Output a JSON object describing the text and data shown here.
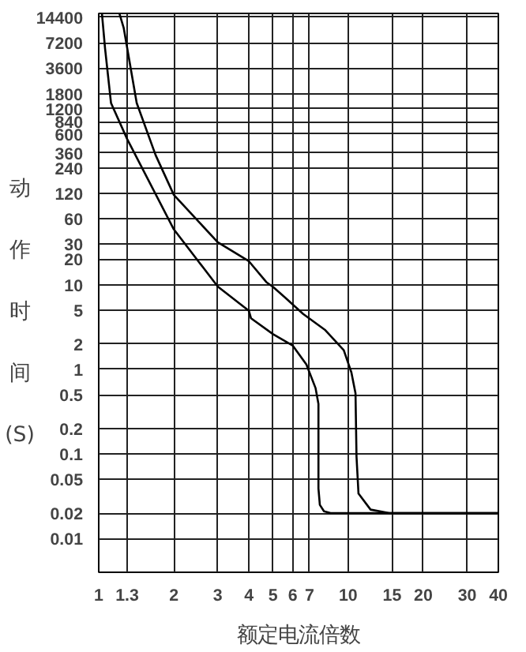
{
  "chart_data": {
    "type": "line",
    "xlabel": "额定电流倍数",
    "ylabel": "动作时间 (S)",
    "log": "xy",
    "grid": true,
    "marker": "none",
    "line_style": "solid",
    "xlim": [
      1,
      40
    ],
    "ylim": [
      0.004,
      16000
    ],
    "xticks": [
      1,
      1.3,
      2,
      3,
      4,
      5,
      6,
      7,
      10,
      15,
      20,
      30,
      40
    ],
    "yticks": [
      14400,
      7200,
      3600,
      1800,
      1200,
      840,
      600,
      360,
      240,
      120,
      60,
      30,
      20,
      10,
      5,
      2,
      1,
      0.5,
      0.2,
      0.1,
      0.05,
      0.02,
      0.01
    ],
    "series": [
      {
        "color": "#000000",
        "x": [
          1.03,
          1.06,
          1.12,
          1.3,
          2,
          3,
          4,
          4.08,
          5,
          6,
          6.8,
          7.4,
          7.6,
          7.6,
          7.7,
          8.0,
          8.5,
          10,
          15,
          20,
          30,
          40
        ],
        "values": [
          16000,
          6200,
          1400,
          525,
          45,
          9.5,
          4.9,
          4,
          2.6,
          1.9,
          1.14,
          0.6,
          0.39,
          0.039,
          0.025,
          0.021,
          0.02,
          0.02,
          0.02,
          0.02,
          0.02,
          0.02
        ]
      },
      {
        "color": "#000000",
        "x": [
          1.21,
          1.26,
          1.42,
          1.69,
          2,
          3,
          4,
          4.7,
          5,
          5.6,
          6.6,
          8.1,
          9.6,
          10.3,
          10.7,
          10.8,
          11.0,
          12.3,
          14.6,
          20,
          30,
          40
        ],
        "values": [
          16000,
          10700,
          1400,
          340,
          115,
          31.7,
          18.9,
          10.7,
          9.4,
          7,
          4.5,
          2.9,
          1.68,
          0.92,
          0.52,
          0.093,
          0.034,
          0.022,
          0.02,
          0.02,
          0.02,
          0.02
        ]
      }
    ]
  }
}
